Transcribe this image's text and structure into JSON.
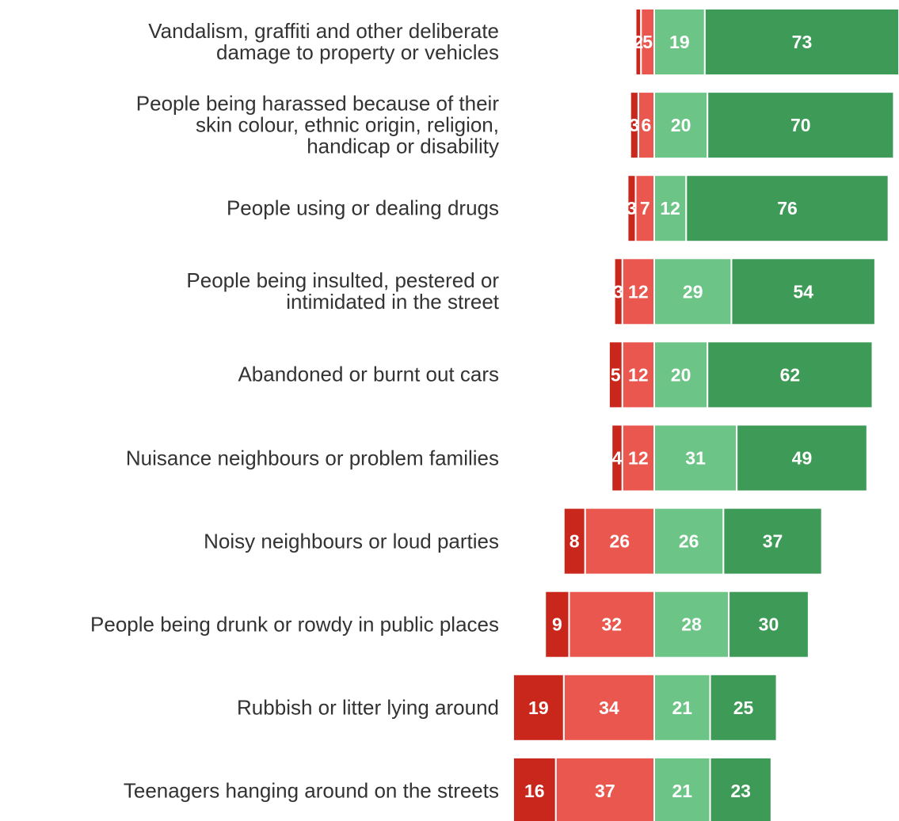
{
  "chart_data": {
    "type": "diverging-bar",
    "categories": [
      "Vandalism, graffiti and other deliberate\ndamage to property or vehicles",
      "People being harassed because of their\nskin colour, ethnic origin, religion,\nhandicap or disability",
      "People using or dealing drugs",
      "People being insulted, pestered or\nintimidated in the street",
      "Abandoned or burnt out cars",
      "Nuisance neighbours or problem families",
      "Noisy neighbours or loud parties",
      "People being drunk or rowdy in public places",
      "Rubbish or litter lying around",
      "Teenagers hanging around on the streets"
    ],
    "series": [
      {
        "color": "#c9261c",
        "values": [
          2,
          3,
          3,
          3,
          5,
          4,
          8,
          9,
          19,
          16
        ]
      },
      {
        "color": "#e9574f",
        "values": [
          5,
          6,
          7,
          12,
          12,
          12,
          26,
          32,
          34,
          37
        ]
      },
      {
        "color": "#6cc486",
        "values": [
          19,
          20,
          12,
          29,
          20,
          31,
          26,
          28,
          21,
          21
        ]
      },
      {
        "color": "#3d9a57",
        "values": [
          73,
          70,
          76,
          54,
          62,
          49,
          37,
          30,
          25,
          23
        ]
      }
    ]
  }
}
